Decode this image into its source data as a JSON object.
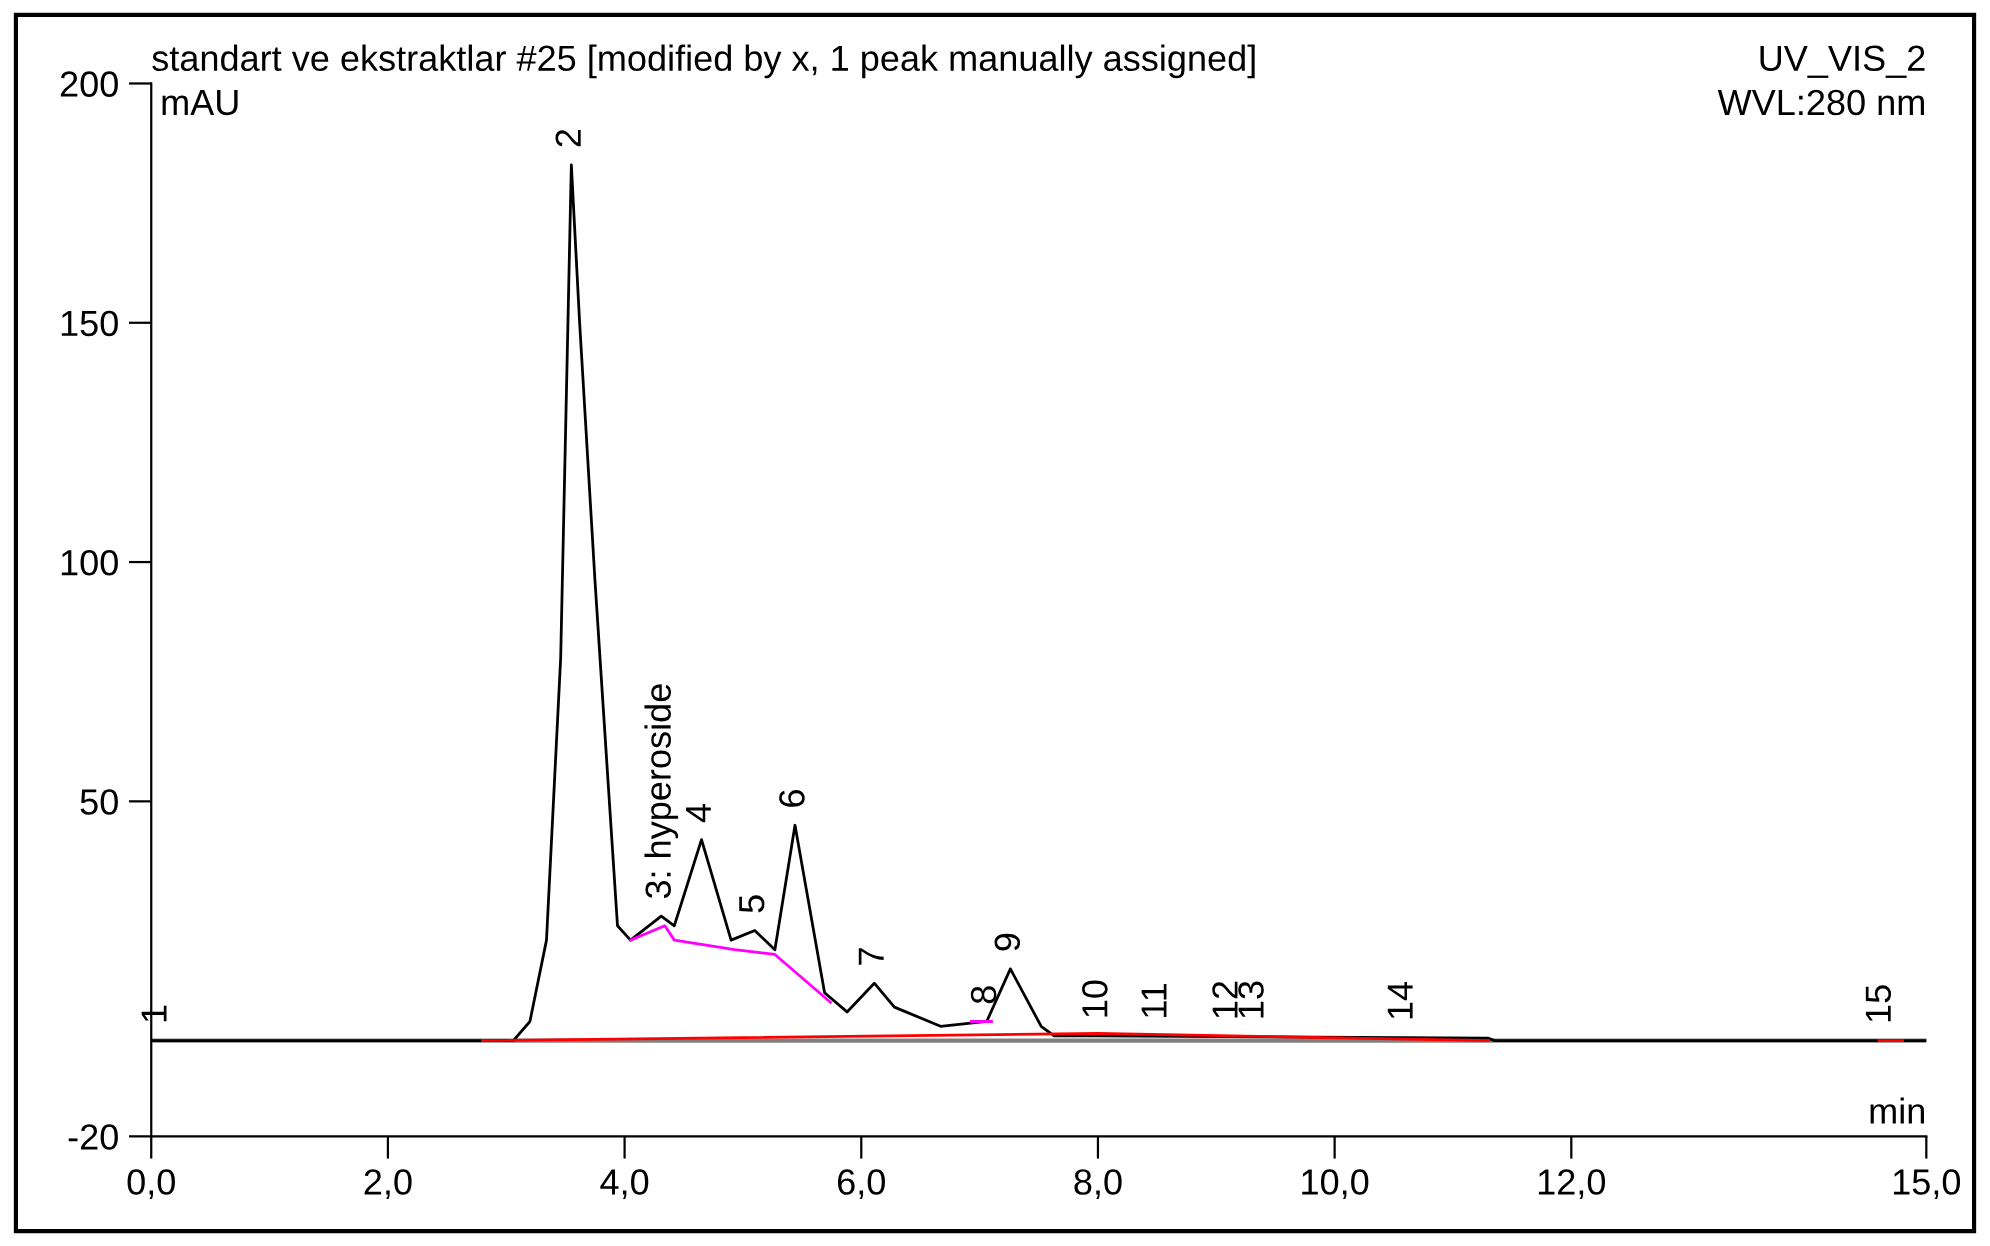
{
  "chart_data": {
    "type": "line",
    "title": "standart ve ekstraktlar #25 [modified by x, 1 peak manually assigned]",
    "subtitle": "UV_VIS_2",
    "xlabel": "min",
    "ylabel": "mAU",
    "xlim": [
      0,
      15
    ],
    "ylim": [
      -20,
      200
    ],
    "xticks": [
      {
        "value": 0,
        "label": "0,0"
      },
      {
        "value": 2,
        "label": "2,0"
      },
      {
        "value": 4,
        "label": "4,0"
      },
      {
        "value": 6,
        "label": "6,0"
      },
      {
        "value": 8,
        "label": "8,0"
      },
      {
        "value": 10,
        "label": "10,0"
      },
      {
        "value": 12,
        "label": "12,0"
      },
      {
        "value": 15,
        "label": "15,0"
      }
    ],
    "yticks": [
      -20,
      50,
      100,
      150,
      200
    ],
    "grid": false,
    "legend": false,
    "series": [
      {
        "color": "#000000",
        "x": [
          0,
          3.06,
          3.2,
          3.34,
          3.46,
          3.55,
          3.62,
          3.75,
          3.85,
          3.94,
          4.05,
          4.31,
          4.42,
          4.65,
          4.9,
          5.1,
          5.27,
          5.44,
          5.69,
          5.88,
          6.11,
          6.28,
          6.67,
          7.06,
          7.26,
          7.52,
          7.63,
          8.0,
          11.3,
          11.35,
          15
        ],
        "values": [
          0,
          0,
          4,
          21,
          80,
          183,
          150,
          96,
          58,
          24,
          21,
          26,
          24,
          42,
          21,
          23,
          19,
          45,
          10,
          6,
          12,
          7,
          3,
          4,
          15,
          3,
          1,
          1,
          0.5,
          0,
          0
        ]
      },
      {
        "color": "#ff0000",
        "x": [
          2.8,
          8.0,
          11.3
        ],
        "values": [
          0,
          1.5,
          0
        ]
      },
      {
        "color": "#ff0000",
        "x": [
          14.6,
          14.8
        ],
        "values": [
          0,
          0
        ]
      },
      {
        "color": "#ff00ff",
        "x": [
          4.05,
          4.34,
          4.42,
          4.93,
          5.27,
          5.74
        ],
        "values": [
          21,
          24,
          21,
          19,
          18,
          8
        ]
      },
      {
        "color": "#ff00ff",
        "x": [
          6.93,
          7.1
        ],
        "values": [
          4,
          4
        ]
      }
    ],
    "ref_lines": [
      {
        "axis": "y",
        "value": 0,
        "color": "#808080"
      }
    ],
    "annotations": [
      "WVL:280 nm",
      {
        "text": "1",
        "x": 0.05,
        "y": 0
      },
      {
        "text": "2",
        "x": 3.55,
        "y": 183
      },
      {
        "text": "3: hyperoside",
        "x": 4.31,
        "y": 26
      },
      {
        "text": "4",
        "x": 4.65,
        "y": 42
      },
      {
        "text": "5",
        "x": 5.1,
        "y": 23
      },
      {
        "text": "6",
        "x": 5.44,
        "y": 45
      },
      {
        "text": "7",
        "x": 6.11,
        "y": 12
      },
      {
        "text": "8",
        "x": 7.06,
        "y": 4
      },
      {
        "text": "9",
        "x": 7.26,
        "y": 15
      },
      {
        "text": "10",
        "x": 8.0,
        "y": 1
      },
      {
        "text": "11",
        "x": 8.5,
        "y": 0.9
      },
      {
        "text": "12",
        "x": 9.1,
        "y": 0.8
      },
      {
        "text": "13",
        "x": 9.32,
        "y": 0.8
      },
      {
        "text": "14",
        "x": 10.58,
        "y": 0.6
      },
      {
        "text": "15",
        "x": 14.62,
        "y": 0
      }
    ]
  }
}
